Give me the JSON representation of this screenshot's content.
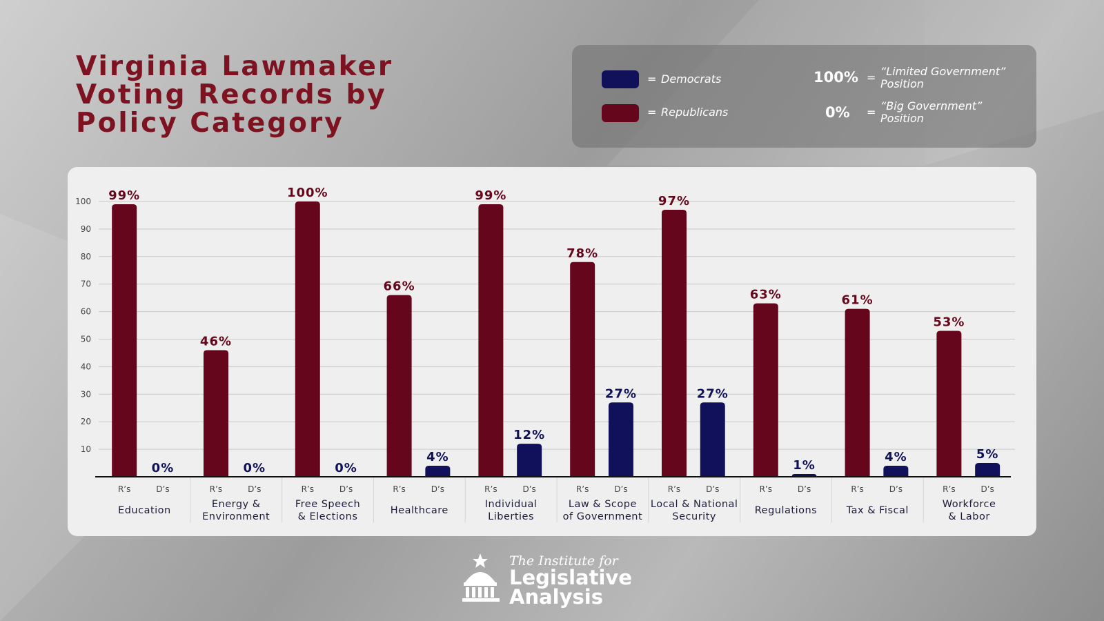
{
  "title_lines": [
    "Virginia Lawmaker",
    "Voting Records by",
    "Policy Category"
  ],
  "legend": {
    "democrats_label": "Democrats",
    "republicans_label": "Republicans",
    "equals": "=",
    "high_pct": "100%",
    "high_meaning_line1": "“Limited Government”",
    "high_meaning_line2": "Position",
    "low_pct": "0%",
    "low_meaning_line1": "“Big Government”",
    "low_meaning_line2": "Position"
  },
  "colors": {
    "republicans": "#66061c",
    "democrats": "#10115a",
    "title": "#7d1221"
  },
  "logo": {
    "icon": "capitol-dome-star-icon",
    "line_pre": "The Institute for",
    "line1": "Legislative",
    "line2": "Analysis"
  },
  "chart_data": {
    "type": "bar",
    "title": "Virginia Lawmaker Voting Records by Policy Category",
    "categories": [
      "Education",
      "Energy & Environment",
      "Free Speech & Elections",
      "Healthcare",
      "Individual Liberties",
      "Law & Scope of Government",
      "Local & National Security",
      "Regulations",
      "Tax & Fiscal",
      "Workforce & Labor"
    ],
    "category_label_lines": [
      [
        "Education"
      ],
      [
        "Energy &",
        "Environment"
      ],
      [
        "Free Speech",
        "& Elections"
      ],
      [
        "Healthcare"
      ],
      [
        "Individual",
        "Liberties"
      ],
      [
        "Law & Scope",
        "of Government"
      ],
      [
        "Local & National",
        "Security"
      ],
      [
        "Regulations"
      ],
      [
        "Tax & Fiscal"
      ],
      [
        "Workforce",
        "& Labor"
      ]
    ],
    "bar_labels": [
      "R’s",
      "D’s"
    ],
    "series": [
      {
        "name": "Republicans",
        "values": [
          99,
          46,
          100,
          66,
          99,
          78,
          97,
          63,
          61,
          53
        ]
      },
      {
        "name": "Democrats",
        "values": [
          0,
          0,
          0,
          4,
          12,
          27,
          27,
          1,
          4,
          5
        ]
      }
    ],
    "ylim": [
      0,
      100
    ],
    "yticks": [
      10,
      20,
      30,
      40,
      50,
      60,
      70,
      80,
      90,
      100
    ],
    "grid": true,
    "value_suffix": "%"
  }
}
